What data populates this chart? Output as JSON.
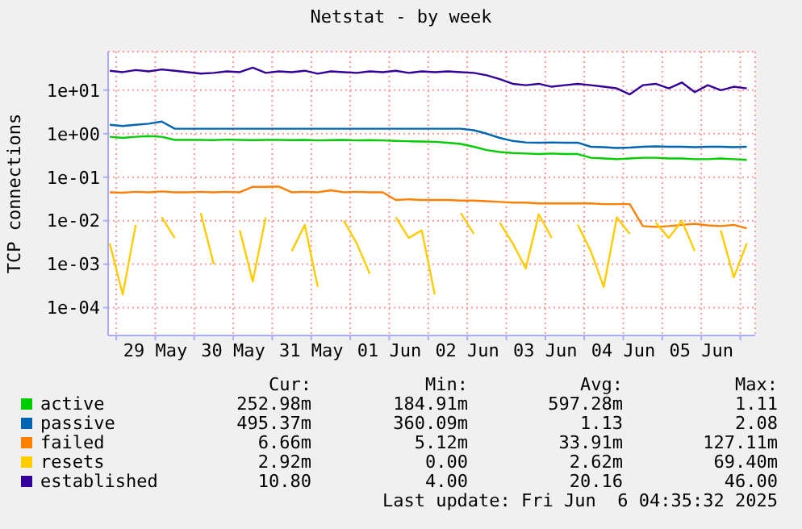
{
  "chart_data": {
    "type": "line",
    "title": "Netstat - by week",
    "ylabel": "TCP connections",
    "log": "y",
    "grid": true,
    "legend": "bottom",
    "marker": "none",
    "line_style": "solid",
    "x": [
      "2025-05-28T22:00",
      "2025-05-29T02:00",
      "2025-05-29T06:00",
      "2025-05-29T10:00",
      "2025-05-29T14:00",
      "2025-05-29T18:00",
      "2025-05-29T22:00",
      "2025-05-30T02:00",
      "2025-05-30T06:00",
      "2025-05-30T10:00",
      "2025-05-30T14:00",
      "2025-05-30T18:00",
      "2025-05-30T22:00",
      "2025-05-31T02:00",
      "2025-05-31T06:00",
      "2025-05-31T10:00",
      "2025-05-31T14:00",
      "2025-05-31T18:00",
      "2025-05-31T22:00",
      "2025-06-01T02:00",
      "2025-06-01T06:00",
      "2025-06-01T10:00",
      "2025-06-01T14:00",
      "2025-06-01T18:00",
      "2025-06-01T22:00",
      "2025-06-02T02:00",
      "2025-06-02T06:00",
      "2025-06-02T10:00",
      "2025-06-02T14:00",
      "2025-06-02T18:00",
      "2025-06-02T22:00",
      "2025-06-03T02:00",
      "2025-06-03T06:00",
      "2025-06-03T10:00",
      "2025-06-03T14:00",
      "2025-06-03T18:00",
      "2025-06-03T22:00",
      "2025-06-04T02:00",
      "2025-06-04T06:00",
      "2025-06-04T10:00",
      "2025-06-04T14:00",
      "2025-06-04T18:00",
      "2025-06-04T22:00",
      "2025-06-05T02:00",
      "2025-06-05T06:00",
      "2025-06-05T10:00",
      "2025-06-05T14:00",
      "2025-06-05T18:00",
      "2025-06-05T22:00",
      "2025-06-06T02:00"
    ],
    "xlim": [
      "2025-05-28T21:30",
      "2025-06-06T04:35"
    ],
    "xticks": [
      {
        "value": "2025-05-29T00:00",
        "label": null
      },
      {
        "value": "2025-05-29T12:00",
        "label": "29 May"
      },
      {
        "value": "2025-05-30T00:00",
        "label": null
      },
      {
        "value": "2025-05-30T12:00",
        "label": "30 May"
      },
      {
        "value": "2025-05-31T00:00",
        "label": null
      },
      {
        "value": "2025-05-31T12:00",
        "label": "31 May"
      },
      {
        "value": "2025-06-01T00:00",
        "label": null
      },
      {
        "value": "2025-06-01T12:00",
        "label": "01 Jun"
      },
      {
        "value": "2025-06-02T00:00",
        "label": null
      },
      {
        "value": "2025-06-02T12:00",
        "label": "02 Jun"
      },
      {
        "value": "2025-06-03T00:00",
        "label": null
      },
      {
        "value": "2025-06-03T12:00",
        "label": "03 Jun"
      },
      {
        "value": "2025-06-04T00:00",
        "label": null
      },
      {
        "value": "2025-06-04T12:00",
        "label": "04 Jun"
      },
      {
        "value": "2025-06-05T00:00",
        "label": null
      },
      {
        "value": "2025-06-05T12:00",
        "label": "05 Jun"
      },
      {
        "value": "2025-06-06T00:00",
        "label": null
      }
    ],
    "ylim": [
      2.3e-05,
      77
    ],
    "yticks": [
      {
        "value": 0.0001,
        "label": "1e-04"
      },
      {
        "value": 0.001,
        "label": "1e-03"
      },
      {
        "value": 0.01,
        "label": "1e-02"
      },
      {
        "value": 0.1,
        "label": "1e-01"
      },
      {
        "value": 1,
        "label": "1e+00"
      },
      {
        "value": 10,
        "label": "1e+01"
      }
    ],
    "series": [
      {
        "name": "active",
        "color": "#00cc00",
        "values": [
          0.85,
          0.8,
          0.85,
          0.88,
          0.85,
          0.72,
          0.72,
          0.72,
          0.71,
          0.73,
          0.72,
          0.71,
          0.72,
          0.72,
          0.71,
          0.72,
          0.7,
          0.71,
          0.72,
          0.7,
          0.71,
          0.7,
          0.68,
          0.67,
          0.66,
          0.65,
          0.62,
          0.58,
          0.5,
          0.42,
          0.38,
          0.36,
          0.35,
          0.34,
          0.35,
          0.34,
          0.34,
          0.28,
          0.27,
          0.26,
          0.27,
          0.28,
          0.28,
          0.27,
          0.27,
          0.26,
          0.26,
          0.27,
          0.26,
          0.25
        ]
      },
      {
        "name": "passive",
        "color": "#0066b3",
        "values": [
          1.6,
          1.5,
          1.6,
          1.7,
          1.9,
          1.3,
          1.3,
          1.3,
          1.3,
          1.3,
          1.3,
          1.3,
          1.3,
          1.3,
          1.3,
          1.3,
          1.3,
          1.3,
          1.3,
          1.3,
          1.3,
          1.3,
          1.3,
          1.3,
          1.3,
          1.3,
          1.3,
          1.3,
          1.2,
          1.0,
          0.8,
          0.68,
          0.63,
          0.62,
          0.63,
          0.62,
          0.62,
          0.5,
          0.49,
          0.47,
          0.48,
          0.5,
          0.51,
          0.5,
          0.5,
          0.49,
          0.5,
          0.5,
          0.49,
          0.5
        ]
      },
      {
        "name": "failed",
        "color": "#ff8000",
        "values": [
          0.045,
          0.044,
          0.046,
          0.045,
          0.047,
          0.045,
          0.045,
          0.046,
          0.045,
          0.046,
          0.045,
          0.06,
          0.06,
          0.061,
          0.045,
          0.046,
          0.045,
          0.05,
          0.045,
          0.046,
          0.045,
          0.045,
          0.03,
          0.031,
          0.03,
          0.03,
          0.03,
          0.029,
          0.029,
          0.028,
          0.027,
          0.026,
          0.026,
          0.025,
          0.025,
          0.025,
          0.025,
          0.025,
          0.024,
          0.024,
          0.024,
          0.0075,
          0.0072,
          0.0075,
          0.008,
          0.0085,
          0.0078,
          0.0075,
          0.008,
          0.0067
        ]
      },
      {
        "name": "resets",
        "color": "#ffcc00",
        "values": [
          0.003,
          0.0002,
          0.008,
          null,
          0.012,
          0.004,
          null,
          0.015,
          0.001,
          null,
          0.006,
          0.0004,
          0.012,
          null,
          0.002,
          0.008,
          0.0003,
          null,
          0.01,
          0.003,
          0.0006,
          null,
          0.012,
          0.004,
          0.006,
          0.0002,
          null,
          0.015,
          0.005,
          null,
          0.009,
          0.003,
          0.0008,
          0.014,
          0.004,
          null,
          0.008,
          0.002,
          0.0003,
          0.012,
          0.005,
          null,
          0.009,
          0.004,
          0.01,
          0.002,
          null,
          0.006,
          0.0005,
          0.003
        ]
      },
      {
        "name": "established",
        "color": "#330099",
        "values": [
          28,
          26,
          29,
          27,
          30,
          28,
          26,
          24,
          25,
          27,
          26,
          33,
          25,
          27,
          26,
          28,
          24,
          27,
          26,
          25,
          27,
          26,
          28,
          25,
          27,
          26,
          27,
          26,
          25,
          22,
          18,
          14,
          13,
          14,
          12,
          13,
          14,
          13,
          12,
          11,
          8,
          13,
          14,
          11,
          15,
          9,
          13,
          10,
          12,
          11
        ]
      }
    ],
    "annotations": [
      "Cur:",
      "Min:",
      "Avg:",
      "Max:",
      "252.98m",
      "184.91m",
      "597.28m",
      "1.11",
      "495.37m",
      "360.09m",
      "1.13",
      "2.08",
      "6.66m",
      "5.12m",
      "33.91m",
      "127.11m",
      "2.92m",
      "0.00",
      "2.62m",
      "69.40m",
      "10.80",
      "4.00",
      "20.16",
      "46.00",
      "Last update: Fri Jun  6 04:35:32 2025"
    ]
  }
}
